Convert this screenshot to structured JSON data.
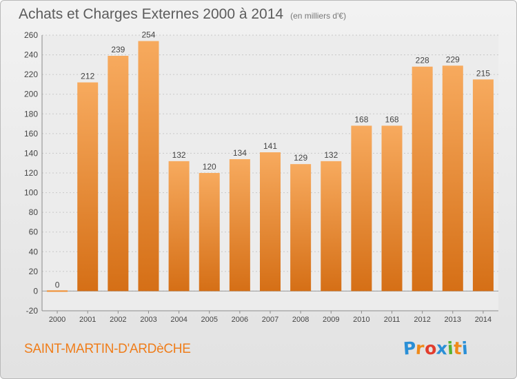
{
  "header": {
    "title": "Achats et Charges Externes 2000 à 2014",
    "subtitle": "(en milliers d'€)"
  },
  "footer": {
    "commune": "SAINT-MARTIN-D'ARDèCHE",
    "logo_letters": [
      "P",
      "r",
      "o",
      "x",
      "i",
      "t",
      "i"
    ],
    "logo_colors": [
      "#2a8fd6",
      "#ef8a1a",
      "#e23d2d",
      "#2a8fd6",
      "#55b330",
      "#ef8a1a",
      "#2a8fd6"
    ]
  },
  "chart_data": {
    "type": "bar",
    "title": "Achats et Charges Externes 2000 à 2014",
    "subtitle": "(en milliers d'€)",
    "categories": [
      "2000",
      "2001",
      "2002",
      "2003",
      "2004",
      "2005",
      "2006",
      "2007",
      "2008",
      "2009",
      "2010",
      "2011",
      "2012",
      "2013",
      "2014"
    ],
    "values": [
      0,
      212,
      239,
      254,
      132,
      120,
      134,
      141,
      129,
      132,
      168,
      168,
      228,
      229,
      215
    ],
    "ylim": [
      -20,
      260
    ],
    "yticks": [
      -20,
      0,
      20,
      40,
      60,
      80,
      100,
      120,
      140,
      160,
      180,
      200,
      220,
      240,
      260
    ],
    "grid": true,
    "bar_color": "#ef8c2e",
    "bar_color_light": "#f7aa5e",
    "bar_color_dark": "#d56f16",
    "xlabel": "",
    "ylabel": ""
  }
}
